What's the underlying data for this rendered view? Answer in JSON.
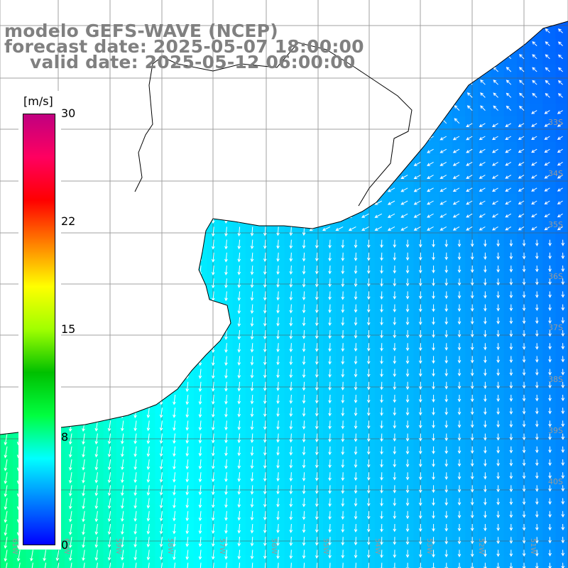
{
  "header": {
    "line1": "modelo GEFS-WAVE (NCEP)",
    "line2": "forecast date: 2025-05-07 18:00:00",
    "line3": "valid date: 2025-05-12 06:00:00"
  },
  "colorbar": {
    "units": "[m/s]",
    "ticks": [
      "30",
      "22",
      "15",
      "8",
      "0"
    ],
    "stops": [
      "#0000ff",
      "#0080ff",
      "#00ffff",
      "#00ff40",
      "#00c000",
      "#a0ff00",
      "#ffff00",
      "#ff8000",
      "#ff0000",
      "#ff0060",
      "#c00080"
    ]
  },
  "lat_labels": [
    "33S",
    "34S",
    "35S",
    "36S",
    "37S",
    "38S",
    "39S",
    "40S"
  ],
  "lon_labels": [
    "61W",
    "60W",
    "59W",
    "58W",
    "57W",
    "56W",
    "55W",
    "54W",
    "53W",
    "52W",
    "51W"
  ],
  "chart_data": {
    "type": "heatmap",
    "title": "modelo GEFS-WAVE (NCEP)",
    "units": "m/s",
    "colorbar_range": [
      0,
      30
    ],
    "colorbar_ticks": [
      30,
      22,
      15,
      8,
      0
    ],
    "lat_range_approx": [
      "32S",
      "41S"
    ],
    "lon_range_approx": [
      "62W",
      "51W"
    ],
    "field": "wind speed with direction arrows",
    "observations": "Speeds mostly 4-9 m/s; higher (~8-10 m/s) in the southwest near the coast, lower (~2-4 m/s) offshore to the east; arrows point mainly south/southwest in the west and west in the northeast."
  }
}
